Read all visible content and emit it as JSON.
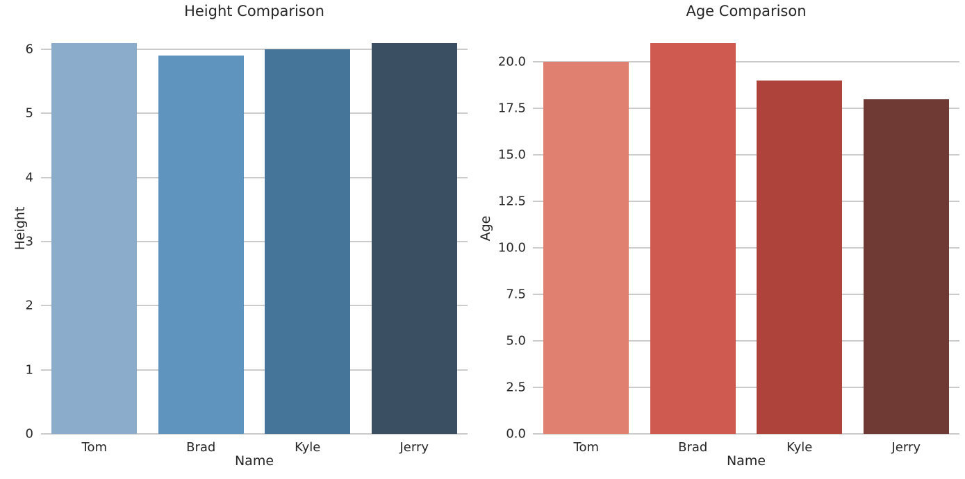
{
  "figure": {
    "background": "#ffffff",
    "text_color": "#262626",
    "grid_color": "#cbcbcb"
  },
  "chart_data": [
    {
      "type": "bar",
      "title": "Height Comparison",
      "xlabel": "Name",
      "ylabel": "Height",
      "categories": [
        "Tom",
        "Brad",
        "Kyle",
        "Jerry"
      ],
      "values": [
        6.1,
        5.9,
        6.0,
        6.1
      ],
      "ylim": [
        0,
        6.4
      ],
      "yticks": [
        0,
        1,
        2,
        3,
        4,
        5,
        6
      ],
      "ytick_labels": [
        "0",
        "1",
        "2",
        "3",
        "4",
        "5",
        "6"
      ],
      "bar_colors": [
        "#8badcb",
        "#5e94bd",
        "#45769a",
        "#3a4f62"
      ],
      "grid": true,
      "legend": false
    },
    {
      "type": "bar",
      "title": "Age Comparison",
      "xlabel": "Name",
      "ylabel": "Age",
      "categories": [
        "Tom",
        "Brad",
        "Kyle",
        "Jerry"
      ],
      "values": [
        20,
        21,
        19,
        18
      ],
      "ylim": [
        0,
        22.05
      ],
      "yticks": [
        0,
        2.5,
        5,
        7.5,
        10,
        12.5,
        15,
        17.5,
        20
      ],
      "ytick_labels": [
        "0.0",
        "2.5",
        "5.0",
        "7.5",
        "10.0",
        "12.5",
        "15.0",
        "17.5",
        "20.0"
      ],
      "bar_colors": [
        "#df8070",
        "#ce5a50",
        "#ae433c",
        "#6f3a34"
      ],
      "grid": true,
      "legend": false
    }
  ]
}
